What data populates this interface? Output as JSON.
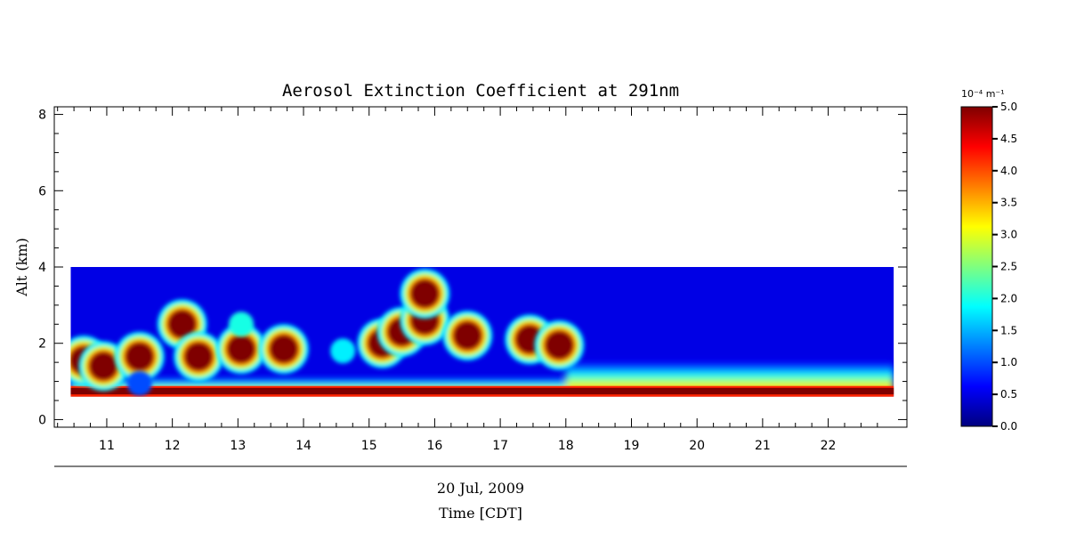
{
  "chart_data": {
    "type": "heatmap",
    "title": "Aerosol Extinction Coefficient at 291nm",
    "xlabel": "Time [CDT]",
    "date_label": "20 Jul, 2009",
    "ylabel": "Alt (km)",
    "x_range": [
      10.2,
      23.2
    ],
    "y_range": [
      -0.2,
      8.2
    ],
    "data_extent": {
      "time": [
        10.45,
        23.0
      ],
      "alt_km": [
        0.6,
        4.0
      ]
    },
    "x_ticks": [
      11,
      12,
      13,
      14,
      15,
      16,
      17,
      18,
      19,
      20,
      21,
      22
    ],
    "y_ticks": [
      0,
      2,
      4,
      6,
      8
    ],
    "colorbar": {
      "unit_label": "10⁻⁴ m⁻¹",
      "min": 0.0,
      "max": 5.0,
      "ticks": [
        "0.0",
        "0.5",
        "1.0",
        "1.5",
        "2.0",
        "2.5",
        "3.0",
        "3.5",
        "4.0",
        "4.5",
        "5.0"
      ],
      "colormap": [
        "#00007f",
        "#0000ff",
        "#007fff",
        "#00ffff",
        "#7fff7f",
        "#ffff00",
        "#ff7f00",
        "#ff0000",
        "#7f0000"
      ]
    },
    "background_field": {
      "surface_layer": {
        "alt_km": 0.75,
        "value": 5.0,
        "note_times": [
          10.45,
          23.0
        ]
      },
      "boundary_layer_top_km_before_18": 1.1,
      "boundary_layer_top_km_after_18": 1.5,
      "free_troposphere_value": 0.5
    },
    "features": [
      {
        "time": 10.65,
        "alt_km": 1.55,
        "value": 5.0
      },
      {
        "time": 10.95,
        "alt_km": 1.4,
        "value": 5.0
      },
      {
        "time": 11.5,
        "alt_km": 1.65,
        "value": 5.0
      },
      {
        "time": 11.5,
        "alt_km": 0.95,
        "value": 1.0
      },
      {
        "time": 12.15,
        "alt_km": 2.5,
        "value": 5.0
      },
      {
        "time": 12.4,
        "alt_km": 1.65,
        "value": 5.0
      },
      {
        "time": 13.05,
        "alt_km": 1.85,
        "value": 5.0
      },
      {
        "time": 13.05,
        "alt_km": 2.5,
        "value": 2.0
      },
      {
        "time": 13.7,
        "alt_km": 1.85,
        "value": 5.0
      },
      {
        "time": 14.6,
        "alt_km": 1.8,
        "value": 1.8
      },
      {
        "time": 15.2,
        "alt_km": 2.0,
        "value": 5.0
      },
      {
        "time": 15.5,
        "alt_km": 2.3,
        "value": 5.0
      },
      {
        "time": 15.85,
        "alt_km": 2.6,
        "value": 5.0
      },
      {
        "time": 15.85,
        "alt_km": 3.3,
        "value": 5.0
      },
      {
        "time": 16.5,
        "alt_km": 2.2,
        "value": 5.0
      },
      {
        "time": 17.45,
        "alt_km": 2.1,
        "value": 5.0
      },
      {
        "time": 17.9,
        "alt_km": 1.95,
        "value": 5.0
      }
    ]
  }
}
